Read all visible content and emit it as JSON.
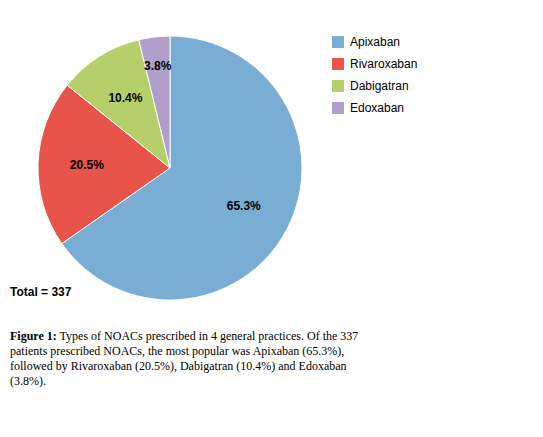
{
  "chart_data": {
    "type": "pie",
    "categories": [
      "Apixaban",
      "Rivaroxaban",
      "Dabigatran",
      "Edoxaban"
    ],
    "values": [
      65.3,
      20.5,
      10.4,
      3.8
    ],
    "value_labels": [
      "65.3%",
      "20.5%",
      "10.4%",
      "3.8%"
    ],
    "colors": [
      "#7aadd4",
      "#e8534a",
      "#b5cf6b",
      "#b09fca"
    ],
    "data_labels": true,
    "legend": "upper right",
    "annotations": [
      "Total = 337"
    ],
    "caption": [
      "Figure 1:",
      " Types of NOACs prescribed in 4 general practices. Of the 337\npatients prescribed NOACs, the most popular was Apixaban (65.3%),\nfollowed by Rivaroxaban (20.5%), Dabigatran (10.4%) and Edoxaban\n(3.8%)."
    ]
  }
}
